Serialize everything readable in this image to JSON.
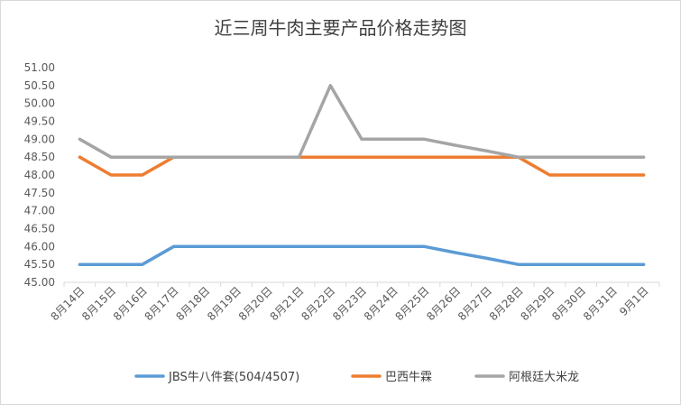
{
  "chart_data": {
    "type": "line",
    "title": "近三周牛肉主要产品价格走势图",
    "xlabel": "",
    "ylabel": "",
    "categories": [
      "8月14日",
      "8月15日",
      "8月16日",
      "8月17日",
      "8月18日",
      "8月19日",
      "8月20日",
      "8月21日",
      "8月22日",
      "8月23日",
      "8月24日",
      "8月25日",
      "8月26日",
      "8月27日",
      "8月28日",
      "8月29日",
      "8月30日",
      "8月31日",
      "9月1日"
    ],
    "ylim": [
      45.0,
      51.0
    ],
    "ytick_step": 0.5,
    "ytick_labels": [
      "45.00",
      "45.50",
      "46.00",
      "46.50",
      "47.00",
      "47.50",
      "48.00",
      "48.50",
      "49.00",
      "49.50",
      "50.00",
      "50.50",
      "51.00"
    ],
    "grid": false,
    "legend_position": "bottom",
    "series": [
      {
        "name": "JBS牛八件套(504/4507)",
        "color": "#5B9BD5",
        "values": [
          45.5,
          45.5,
          45.5,
          46.0,
          46.0,
          46.0,
          46.0,
          46.0,
          46.0,
          46.0,
          46.0,
          46.0,
          45.83,
          45.67,
          45.5,
          45.5,
          45.5,
          45.5,
          45.5
        ]
      },
      {
        "name": "巴西牛霖",
        "color": "#ED7D31",
        "values": [
          48.5,
          48.0,
          48.0,
          48.5,
          48.5,
          48.5,
          48.5,
          48.5,
          48.5,
          48.5,
          48.5,
          48.5,
          48.5,
          48.5,
          48.5,
          48.0,
          48.0,
          48.0,
          48.0
        ]
      },
      {
        "name": "阿根廷大米龙",
        "color": "#A5A5A5",
        "values": [
          49.0,
          48.5,
          48.5,
          48.5,
          48.5,
          48.5,
          48.5,
          48.5,
          50.5,
          49.0,
          49.0,
          49.0,
          48.83,
          48.67,
          48.5,
          48.5,
          48.5,
          48.5,
          48.5
        ]
      }
    ]
  }
}
